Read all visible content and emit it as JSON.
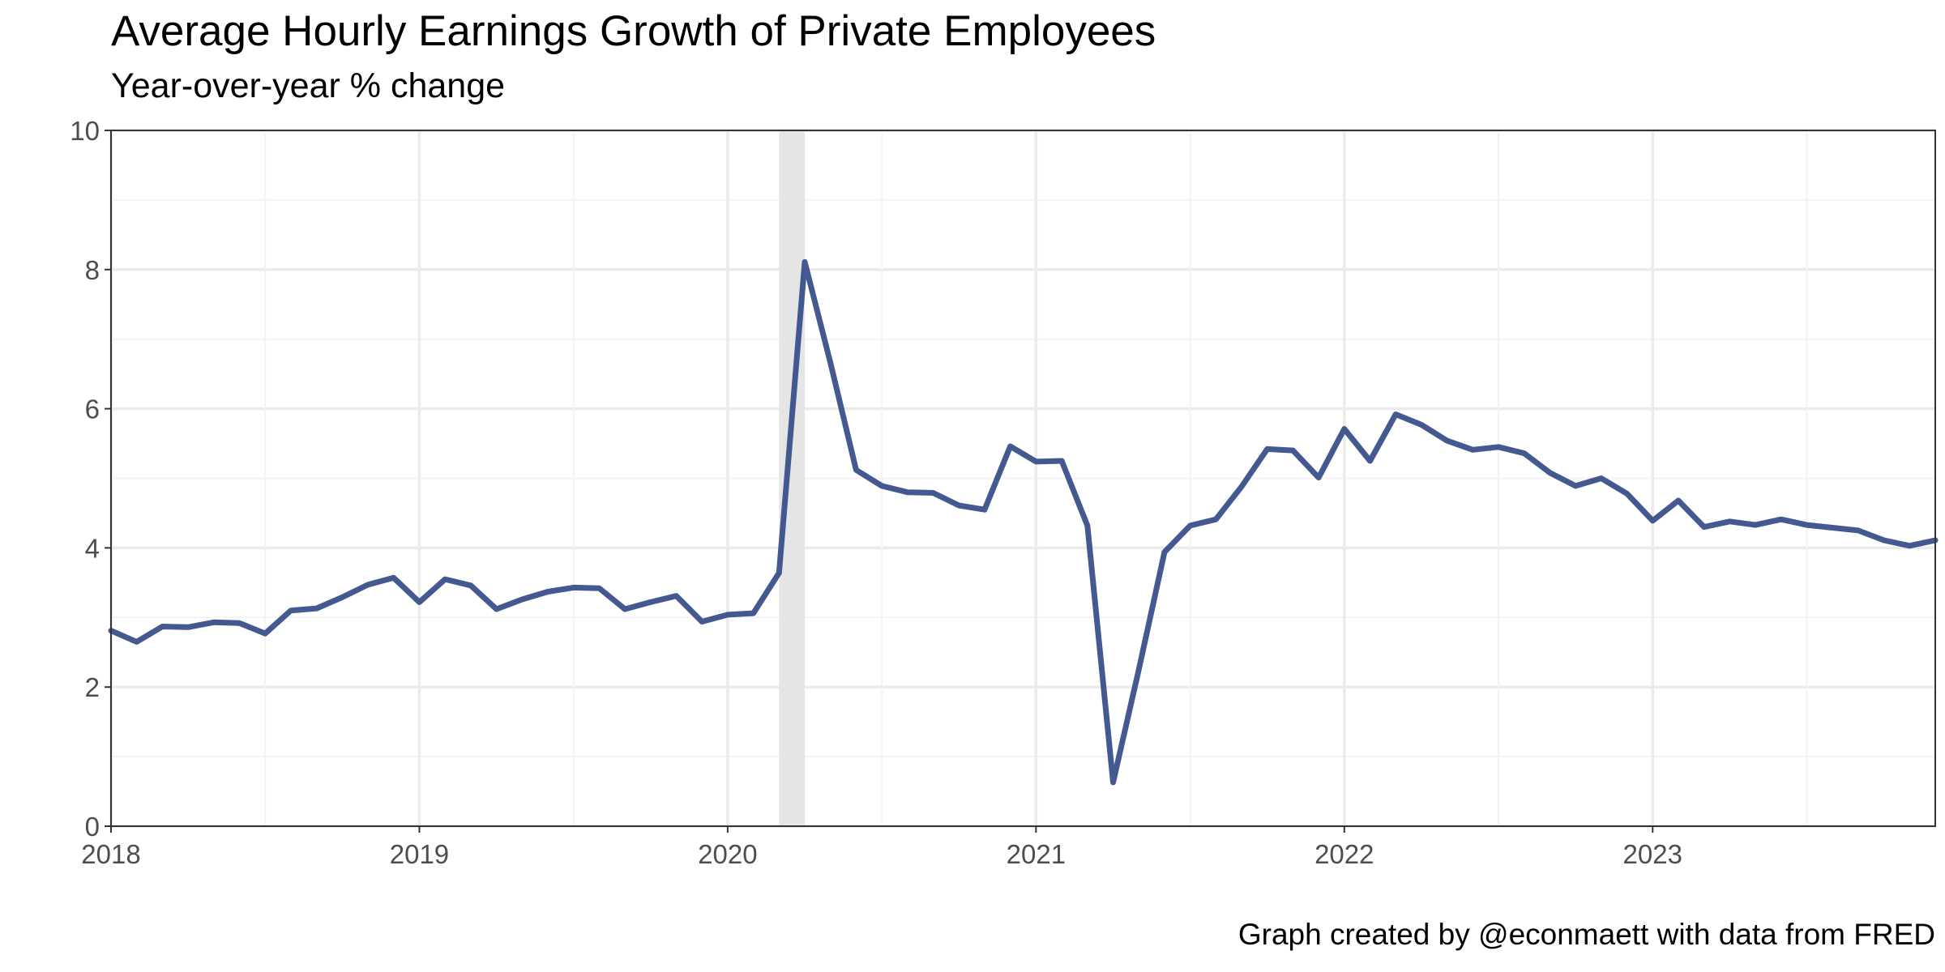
{
  "chart_data": {
    "type": "line",
    "title": "Average Hourly Earnings Growth of Private Employees",
    "subtitle": "Year-over-year % change",
    "caption": "Graph created by @econmaett with data from FRED",
    "xlabel": "",
    "ylabel": "",
    "xlim": [
      "2018-01",
      "2023-12"
    ],
    "ylim": [
      0,
      10
    ],
    "y_ticks": [
      0,
      2,
      4,
      6,
      8,
      10
    ],
    "x_ticks": [
      "2018",
      "2019",
      "2020",
      "2021",
      "2022",
      "2023"
    ],
    "grid": true,
    "recession_shading": {
      "start": "2020-03",
      "end": "2020-04"
    },
    "colors": {
      "line": "#3a5089",
      "recession": "#e5e5e5",
      "grid_major": "#ebebeb",
      "grid_minor": "#f3f3f3",
      "panel_border": "#333333"
    },
    "series": [
      {
        "x": [
          "2018-01",
          "2018-02",
          "2018-03",
          "2018-04",
          "2018-05",
          "2018-06",
          "2018-07",
          "2018-08",
          "2018-09",
          "2018-10",
          "2018-11",
          "2018-12",
          "2019-01",
          "2019-02",
          "2019-03",
          "2019-04",
          "2019-05",
          "2019-06",
          "2019-07",
          "2019-08",
          "2019-09",
          "2019-10",
          "2019-11",
          "2019-12",
          "2020-01",
          "2020-02",
          "2020-03",
          "2020-04",
          "2020-05",
          "2020-06",
          "2020-07",
          "2020-08",
          "2020-09",
          "2020-10",
          "2020-11",
          "2020-12",
          "2021-01",
          "2021-02",
          "2021-03",
          "2021-04",
          "2021-05",
          "2021-06",
          "2021-07",
          "2021-08",
          "2021-09",
          "2021-10",
          "2021-11",
          "2021-12",
          "2022-01",
          "2022-02",
          "2022-03",
          "2022-04",
          "2022-05",
          "2022-06",
          "2022-07",
          "2022-08",
          "2022-09",
          "2022-10",
          "2022-11",
          "2022-12",
          "2023-01",
          "2023-02",
          "2023-03",
          "2023-04",
          "2023-05",
          "2023-06",
          "2023-07",
          "2023-08",
          "2023-09",
          "2023-10",
          "2023-11",
          "2023-12"
        ],
        "values": [
          2.81,
          2.65,
          2.87,
          2.86,
          2.93,
          2.92,
          2.77,
          3.1,
          3.13,
          3.29,
          3.47,
          3.57,
          3.22,
          3.55,
          3.46,
          3.12,
          3.26,
          3.37,
          3.43,
          3.42,
          3.12,
          3.22,
          3.31,
          2.94,
          3.04,
          3.06,
          3.64,
          8.11,
          6.66,
          5.12,
          4.89,
          4.8,
          4.79,
          4.61,
          4.55,
          5.46,
          5.24,
          5.25,
          4.32,
          0.63,
          2.25,
          3.94,
          4.32,
          4.41,
          4.88,
          5.42,
          5.4,
          5.01,
          5.71,
          5.25,
          5.92,
          5.77,
          5.54,
          5.41,
          5.45,
          5.36,
          5.08,
          4.89,
          5.0,
          4.78,
          4.39,
          4.68,
          4.3,
          4.38,
          4.33,
          4.41,
          4.33,
          4.29,
          4.25,
          4.11,
          4.03,
          4.11
        ]
      }
    ]
  }
}
